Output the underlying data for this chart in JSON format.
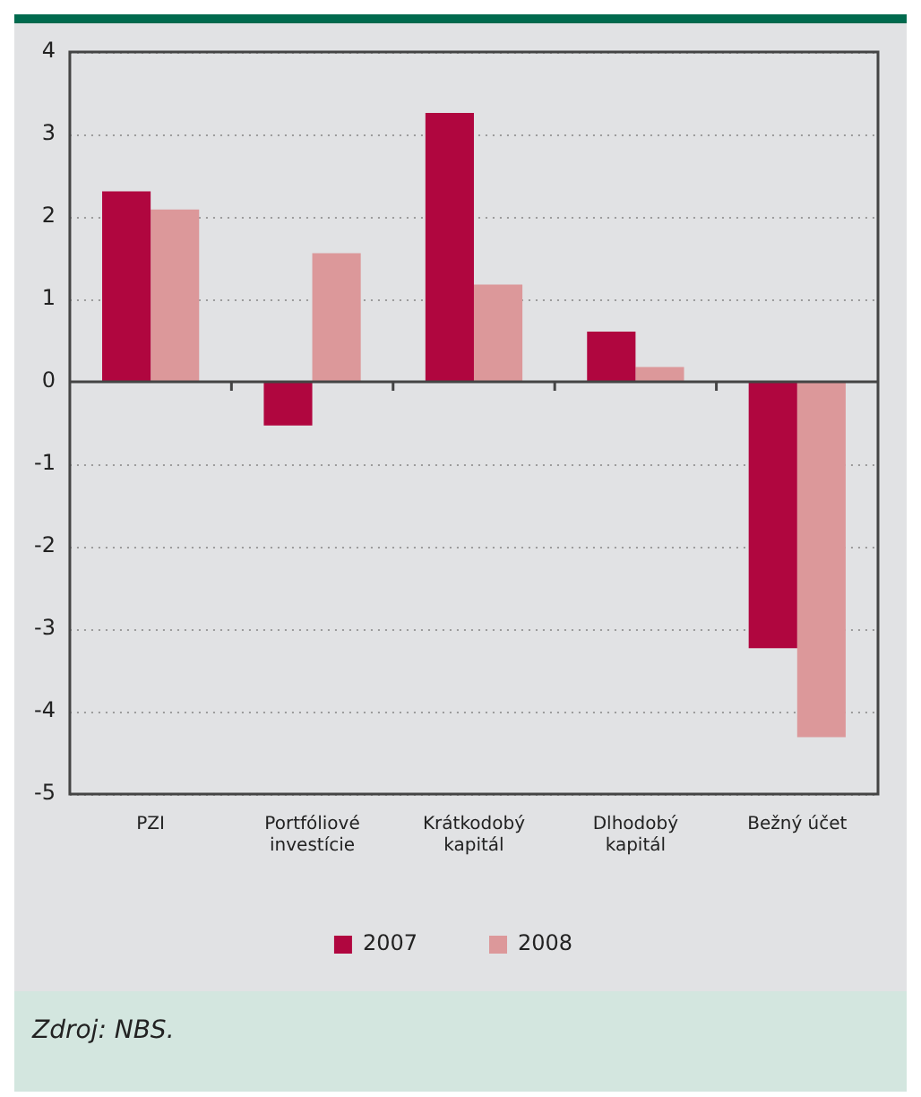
{
  "chart_data": {
    "type": "bar",
    "categories": [
      "PZI",
      "Portfóliové investície",
      "Krátkodobý kapitál",
      "Dlhodobý kapitál",
      "Bežný účet"
    ],
    "series": [
      {
        "name": "2007",
        "color": "#b0063f",
        "values": [
          2.31,
          -0.53,
          3.26,
          0.61,
          -3.23
        ]
      },
      {
        "name": "2008",
        "color": "#dc989a",
        "values": [
          2.09,
          1.56,
          1.18,
          0.18,
          -4.31
        ]
      }
    ],
    "ylim": [
      -5,
      4
    ],
    "yticks": [
      -5,
      -4,
      -3,
      -2,
      -1,
      0,
      1,
      2,
      3,
      4
    ],
    "grid": "y",
    "legend": "bottom",
    "annotations": [
      "Zdroj: NBS."
    ]
  }
}
